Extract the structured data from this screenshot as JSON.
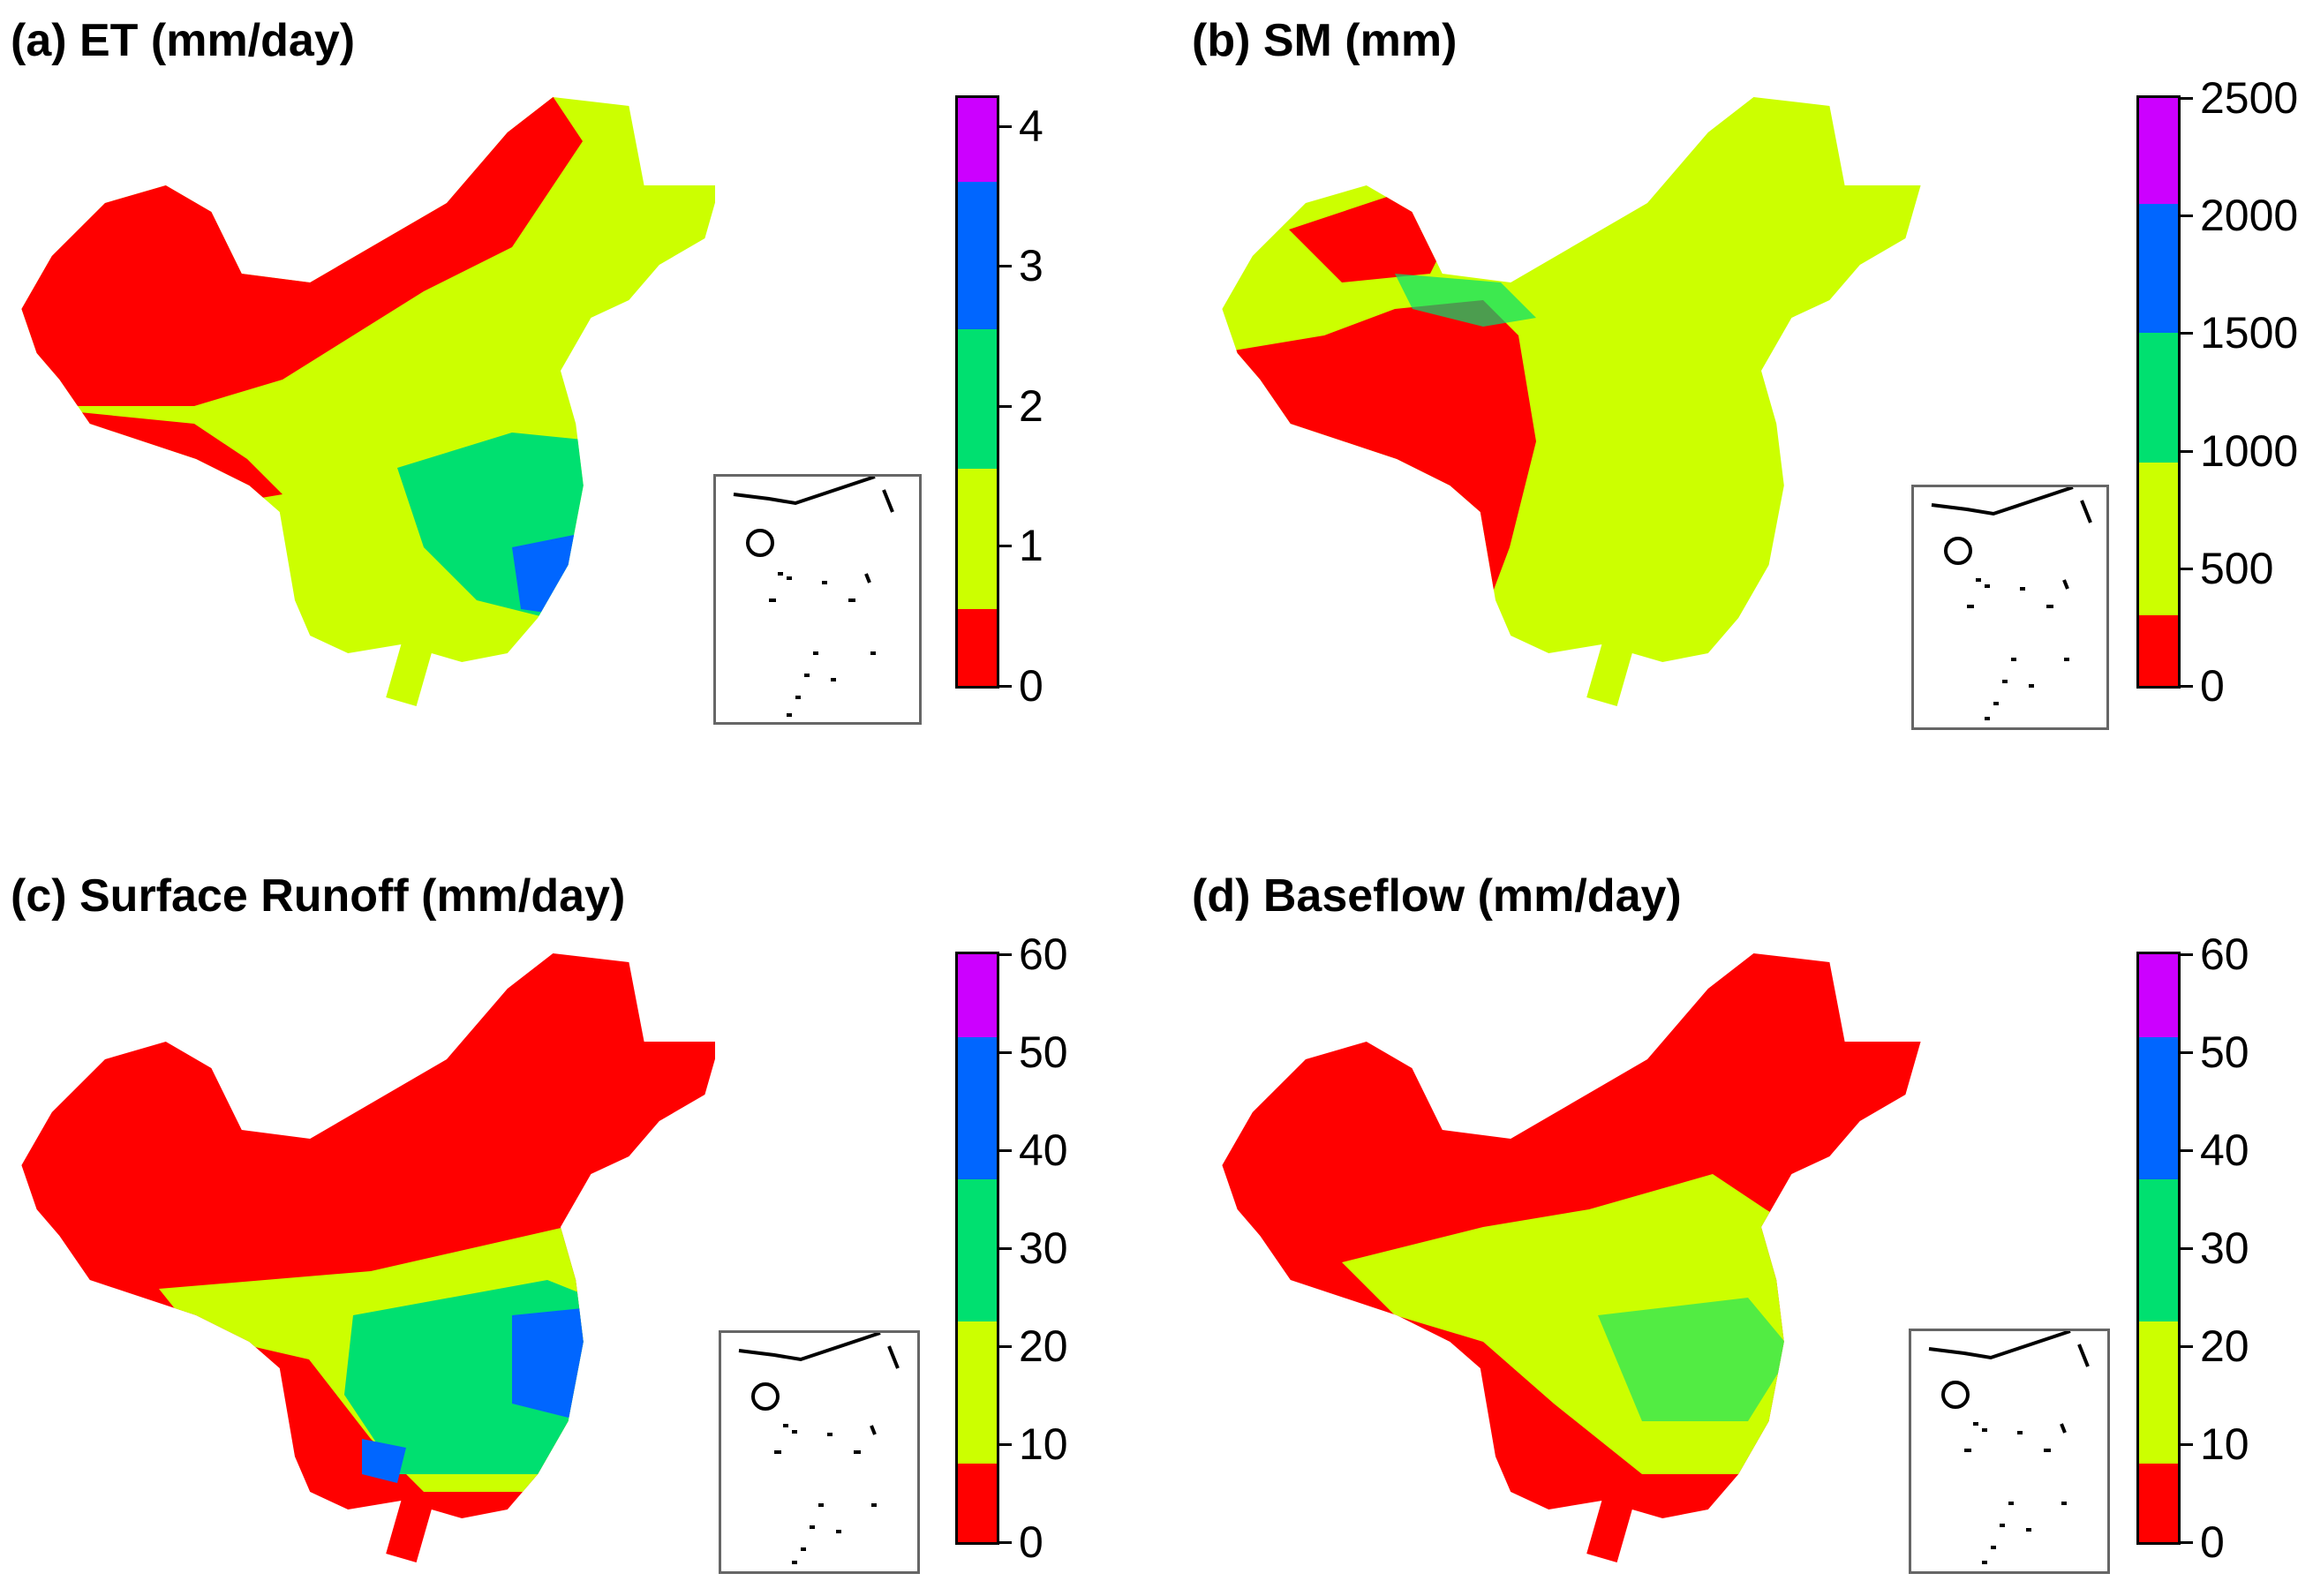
{
  "panels": [
    {
      "id": "a",
      "title": "(a) ET (mm/day)",
      "ticks": [
        "0",
        "1",
        "2",
        "3",
        "4"
      ],
      "scale_max": 4.2,
      "tick_values": [
        0,
        1,
        2,
        3,
        4
      ],
      "bounds": [
        0,
        0.55,
        1.55,
        2.55,
        3.6,
        4.2
      ]
    },
    {
      "id": "b",
      "title": "(b) SM (mm)",
      "ticks": [
        "0",
        "500",
        "1000",
        "1500",
        "2000",
        "2500"
      ],
      "scale_max": 2500,
      "tick_values": [
        0,
        500,
        1000,
        1500,
        2000,
        2500
      ],
      "bounds": [
        0,
        300,
        950,
        1500,
        2050,
        2500
      ]
    },
    {
      "id": "c",
      "title": "(c) Surface Runoff (mm/day)",
      "ticks": [
        "0",
        "10",
        "20",
        "30",
        "40",
        "50",
        "60"
      ],
      "scale_max": 60,
      "tick_values": [
        0,
        10,
        20,
        30,
        40,
        50,
        60
      ],
      "bounds": [
        0,
        8,
        22.5,
        37,
        51.5,
        60
      ]
    },
    {
      "id": "d",
      "title": "(d) Baseflow (mm/day)",
      "ticks": [
        "0",
        "10",
        "20",
        "30",
        "40",
        "50",
        "60"
      ],
      "scale_max": 60,
      "tick_values": [
        0,
        10,
        20,
        30,
        40,
        50,
        60
      ],
      "bounds": [
        0,
        8,
        22.5,
        37,
        51.5,
        60
      ]
    }
  ],
  "colors": [
    "#ff0000",
    "#ccff00",
    "#00e070",
    "#0066ff",
    "#cc00ff"
  ],
  "chart_data": [
    {
      "type": "heatmap",
      "title": "(a) ET (mm/day)",
      "legend_ticks": [
        0,
        1,
        2,
        3,
        4
      ],
      "range": [
        0,
        4.2
      ]
    },
    {
      "type": "heatmap",
      "title": "(b) SM (mm)",
      "legend_ticks": [
        0,
        500,
        1000,
        1500,
        2000,
        2500
      ],
      "range": [
        0,
        2500
      ]
    },
    {
      "type": "heatmap",
      "title": "(c) Surface Runoff (mm/day)",
      "legend_ticks": [
        0,
        10,
        20,
        30,
        40,
        50,
        60
      ],
      "range": [
        0,
        60
      ]
    },
    {
      "type": "heatmap",
      "title": "(d) Baseflow (mm/day)",
      "legend_ticks": [
        0,
        10,
        20,
        30,
        40,
        50,
        60
      ],
      "range": [
        0,
        60
      ]
    }
  ]
}
